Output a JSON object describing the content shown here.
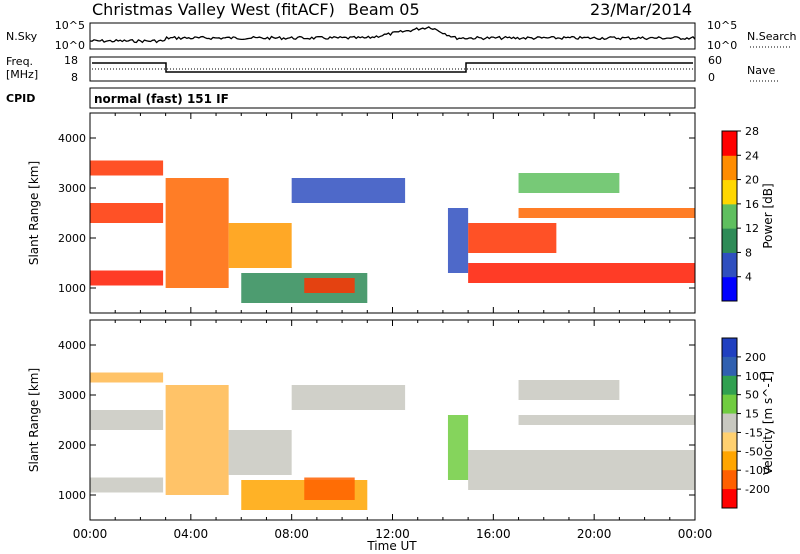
{
  "header": {
    "station": "Christmas Valley West (fitACF)",
    "beam": "Beam 05",
    "date": "23/Mar/2014"
  },
  "strip": {
    "nsky_label": "N.Sky",
    "nsky_ticks": [
      "10^5",
      "10^0"
    ],
    "nsearch_label": "N.Search",
    "nsearch_ticks": [
      "10^5",
      "10^0"
    ],
    "freq_label": "Freq.",
    "freq_unit": "[MHz]",
    "freq_ticks": [
      "18",
      "8"
    ],
    "nave_label": "Nave",
    "nave_ticks": [
      "60",
      "0"
    ],
    "cpid_label": "CPID",
    "cpid_value": "normal (fast) 151 IF"
  },
  "chart_data": [
    {
      "type": "heatmap",
      "panel": "power",
      "ylabel": "Slant Range [km]",
      "ylim": [
        500,
        4500
      ],
      "yticks": [
        "1000",
        "2000",
        "3000",
        "4000"
      ],
      "colorbar_label": "Power [dB]",
      "colorbar_ticks": [
        "4",
        "8",
        "12",
        "16",
        "20",
        "24",
        "28"
      ],
      "colors": [
        "#0000ff",
        "#2f4fbf",
        "#2e8b57",
        "#5fbf5f",
        "#ffd700",
        "#ff8c00",
        "#ff0000"
      ],
      "bands": [
        {
          "t": [
            0,
            2.9
          ],
          "r": [
            2300,
            2700
          ],
          "color": "#ff3300"
        },
        {
          "t": [
            0,
            2.9
          ],
          "r": [
            3250,
            3550
          ],
          "color": "#ff3300"
        },
        {
          "t": [
            0,
            2.9
          ],
          "r": [
            1050,
            1350
          ],
          "color": "#ff1a00"
        },
        {
          "t": [
            3.0,
            5.5
          ],
          "r": [
            1000,
            3200
          ],
          "color": "#ff6600"
        },
        {
          "t": [
            5.5,
            8.0
          ],
          "r": [
            1400,
            2300
          ],
          "color": "#ff9900"
        },
        {
          "t": [
            8.0,
            12.5
          ],
          "r": [
            2700,
            3200
          ],
          "color": "#2f4fbf"
        },
        {
          "t": [
            6.0,
            11.0
          ],
          "r": [
            700,
            1300
          ],
          "color": "#2e8b57"
        },
        {
          "t": [
            8.5,
            10.5
          ],
          "r": [
            900,
            1200
          ],
          "color": "#ff3300"
        },
        {
          "t": [
            15.0,
            24.0
          ],
          "r": [
            1100,
            1500
          ],
          "color": "#ff1a00"
        },
        {
          "t": [
            15.0,
            18.5
          ],
          "r": [
            1700,
            2300
          ],
          "color": "#ff3300"
        },
        {
          "t": [
            17.0,
            24.0
          ],
          "r": [
            2400,
            2600
          ],
          "color": "#ff6600"
        },
        {
          "t": [
            17.0,
            21.0
          ],
          "r": [
            2900,
            3300
          ],
          "color": "#5fbf5f"
        },
        {
          "t": [
            14.2,
            15.0
          ],
          "r": [
            1300,
            2600
          ],
          "color": "#2f4fbf"
        }
      ]
    },
    {
      "type": "heatmap",
      "panel": "velocity",
      "xlabel": "Time UT",
      "ylabel": "Slant Range [km]",
      "xlim": [
        0,
        24
      ],
      "xticks": [
        "00:00",
        "04:00",
        "08:00",
        "12:00",
        "16:00",
        "20:00",
        "00:00"
      ],
      "ylim": [
        500,
        4500
      ],
      "yticks": [
        "1000",
        "2000",
        "3000",
        "4000"
      ],
      "colorbar_label": "Velocity [m s^-1]",
      "colorbar_ticks": [
        "200",
        "100",
        "50",
        "15",
        "-15",
        "-50",
        "-100",
        "-200"
      ],
      "colors": [
        "#2040c0",
        "#3060b0",
        "#30a050",
        "#70cc40",
        "#c8c8c0",
        "#ffd070",
        "#ffa500",
        "#ff6000",
        "#ff0000"
      ],
      "bands": [
        {
          "t": [
            0,
            2.9
          ],
          "r": [
            1050,
            1350
          ],
          "color": "#c8c8c0"
        },
        {
          "t": [
            0,
            2.9
          ],
          "r": [
            2300,
            2700
          ],
          "color": "#c8c8c0"
        },
        {
          "t": [
            0,
            2.9
          ],
          "r": [
            3250,
            3450
          ],
          "color": "#ffb84d"
        },
        {
          "t": [
            3.0,
            5.5
          ],
          "r": [
            1000,
            3200
          ],
          "color": "#ffb84d"
        },
        {
          "t": [
            5.5,
            8.0
          ],
          "r": [
            1400,
            2300
          ],
          "color": "#c8c8c0"
        },
        {
          "t": [
            8.0,
            12.5
          ],
          "r": [
            2700,
            3200
          ],
          "color": "#c8c8c0"
        },
        {
          "t": [
            6.0,
            11.0
          ],
          "r": [
            700,
            1300
          ],
          "color": "#ffa500"
        },
        {
          "t": [
            8.5,
            10.5
          ],
          "r": [
            900,
            1350
          ],
          "color": "#ff6000"
        },
        {
          "t": [
            15.0,
            24.0
          ],
          "r": [
            1100,
            1900
          ],
          "color": "#c8c8c0"
        },
        {
          "t": [
            17.0,
            24.0
          ],
          "r": [
            2400,
            2600
          ],
          "color": "#c8c8c0"
        },
        {
          "t": [
            17.0,
            21.0
          ],
          "r": [
            2900,
            3300
          ],
          "color": "#c8c8c0"
        },
        {
          "t": [
            14.2,
            15.0
          ],
          "r": [
            1300,
            2600
          ],
          "color": "#70cc40"
        }
      ]
    }
  ]
}
